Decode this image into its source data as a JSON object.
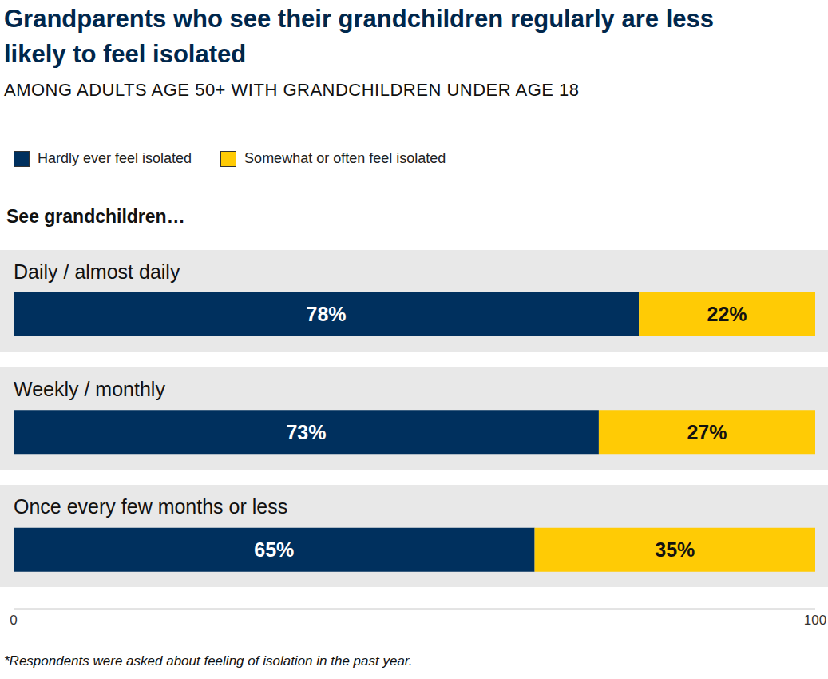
{
  "chart_data": {
    "type": "bar",
    "title": "Grandparents who see their grandchildren regularly are less likely to feel isolated",
    "subtitle": "AMONG ADULTS AGE 50+ WITH GRANDCHILDREN UNDER AGE 18",
    "y_label": "See grandchildren…",
    "footnote": "*Respondents were asked about feeling of isolation in the past year.",
    "categories": [
      "Daily / almost daily",
      "Weekly / monthly",
      "Once every few months or less"
    ],
    "series": [
      {
        "name": "Hardly ever feel isolated",
        "color": "#00305E",
        "values": [
          78,
          73,
          65
        ],
        "value_labels": [
          "78%",
          "73%",
          "65%"
        ]
      },
      {
        "name": "Somewhat or often feel isolated",
        "color": "#FFCB05",
        "values": [
          22,
          27,
          35
        ],
        "value_labels": [
          "22%",
          "27%",
          "35%"
        ]
      }
    ],
    "xlim": [
      0,
      100
    ],
    "xticks": [
      0,
      100
    ],
    "orientation": "horizontal",
    "stacked": true,
    "data_labels": true,
    "legend": "top"
  }
}
